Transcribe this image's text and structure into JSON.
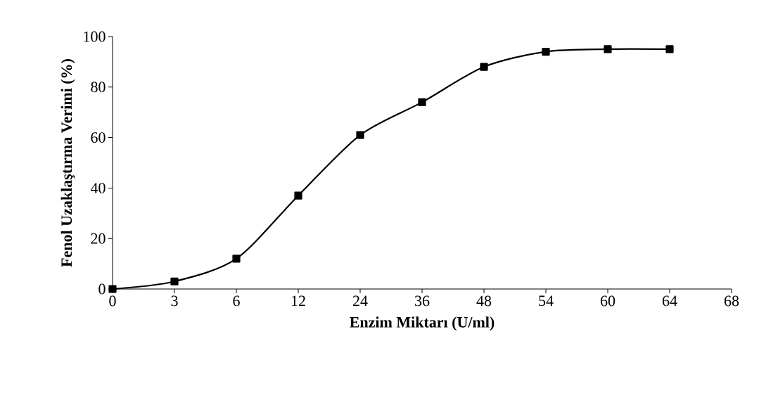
{
  "chart_data": {
    "type": "line",
    "xlabel": "Enzim Miktarı (U/ml)",
    "ylabel": "Fenol Uzaklaştırma Verimi (%)",
    "categories": [
      "0",
      "3",
      "6",
      "12",
      "24",
      "36",
      "48",
      "54",
      "60",
      "64",
      "68"
    ],
    "series": [
      {
        "color": "#000000",
        "values": [
          0,
          3,
          12,
          37,
          61,
          74,
          88,
          94,
          95,
          95,
          null
        ]
      }
    ],
    "ylim": [
      0,
      100
    ],
    "yticks": [
      0,
      20,
      40,
      60,
      80,
      100
    ],
    "marker": "square",
    "line_style": "solid",
    "grid": false
  }
}
